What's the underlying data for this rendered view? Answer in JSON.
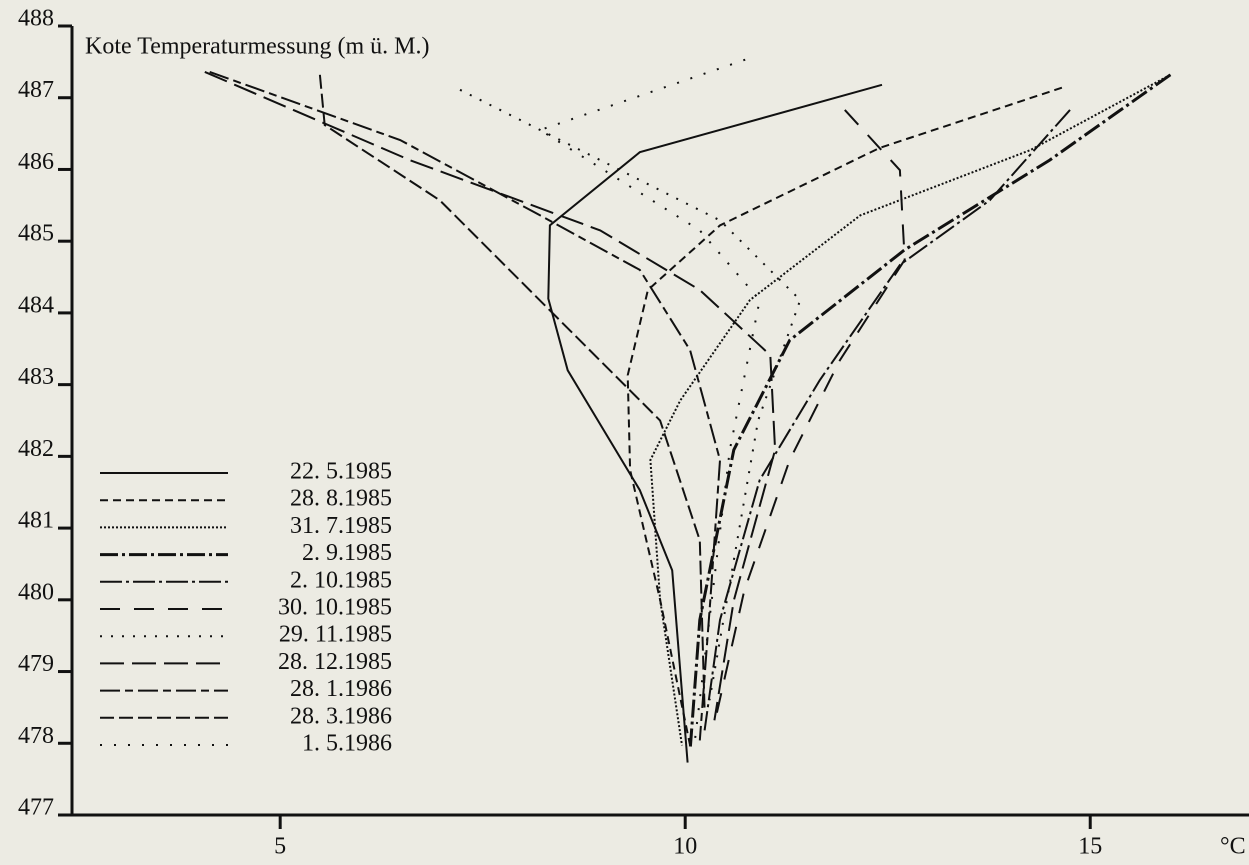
{
  "chart_data": {
    "type": "line",
    "y_label": "Kote Temperaturmessung (m ü. M.)",
    "x_label": "°C",
    "xlim": [
      2.43,
      16.96
    ],
    "xticks": [
      5,
      10,
      15
    ],
    "ylim": [
      477,
      488
    ],
    "yticks": [
      477,
      478,
      479,
      480,
      481,
      482,
      483,
      484,
      485,
      486,
      487,
      488
    ],
    "series": [
      {
        "name": "22. 5.1985",
        "color": "#111",
        "dash": "none",
        "x": [
          12.43,
          9.44,
          8.33,
          8.31,
          8.55,
          9.44,
          9.84,
          10.03
        ],
        "values": [
          487.18,
          486.24,
          485.22,
          484.2,
          483.2,
          481.53,
          480.41,
          477.73
        ]
      },
      {
        "name": "28. 8.1985",
        "color": "#111",
        "dash": "8 5",
        "x": [
          14.65,
          12.4,
          10.43,
          9.54,
          9.29,
          9.32,
          9.69,
          10.06
        ],
        "values": [
          487.14,
          486.3,
          485.22,
          484.32,
          483.13,
          481.81,
          480.0,
          477.97
        ]
      },
      {
        "name": "31. 7.1985",
        "color": "#111",
        "dash": "2 2",
        "x": [
          15.99,
          14.26,
          12.16,
          10.8,
          9.94,
          9.57,
          9.69,
          9.96
        ],
        "values": [
          487.32,
          486.27,
          485.36,
          484.18,
          482.78,
          481.95,
          480.0,
          477.97
        ]
      },
      {
        "name": "2. 9.1985",
        "color": "#111",
        "dash": "18 4 3 4",
        "width": 3,
        "x": [
          15.99,
          14.5,
          12.71,
          11.29,
          10.6,
          10.18,
          10.06
        ],
        "values": [
          487.32,
          486.13,
          484.88,
          483.62,
          482.09,
          479.72,
          477.9
        ]
      },
      {
        "name": "2. 10.1985",
        "color": "#111",
        "dash": "22 4 3 4",
        "x": [
          14.75,
          13.76,
          12.65,
          11.66,
          10.92,
          10.43,
          10.24
        ],
        "values": [
          486.83,
          485.57,
          484.67,
          483.06,
          481.67,
          479.72,
          478.18
        ]
      },
      {
        "name": "30. 10.1985",
        "color": "#111",
        "dash": "20 14",
        "x": [
          11.97,
          12.65,
          12.71,
          11.91,
          11.29,
          10.73,
          10.37
        ],
        "values": [
          486.83,
          485.99,
          484.74,
          483.34,
          481.95,
          480.13,
          478.32
        ]
      },
      {
        "name": "29. 11.1985",
        "color": "#111",
        "dash": "2 9",
        "x": [
          7.22,
          8.95,
          10.43,
          11.42,
          10.9,
          10.3
        ],
        "values": [
          487.11,
          486.13,
          485.29,
          484.18,
          482.5,
          478.6
        ]
      },
      {
        "name": "28. 12.1985",
        "color": "#111",
        "dash": "24 8",
        "x": [
          4.07,
          6.6,
          8.95,
          10.18,
          11.05,
          11.11,
          10.6,
          10.36
        ],
        "values": [
          487.36,
          486.13,
          485.15,
          484.32,
          483.41,
          482.09,
          479.99,
          478.32
        ]
      },
      {
        "name": "28. 1.1986",
        "color": "#111",
        "dash": "20 5 8 5",
        "x": [
          4.13,
          6.48,
          8.21,
          9.44,
          10.06,
          10.43,
          10.31,
          10.18
        ],
        "values": [
          487.36,
          486.41,
          485.36,
          484.6,
          483.48,
          481.95,
          479.99,
          478.04
        ]
      },
      {
        "name": "28. 3.1986",
        "color": "#111",
        "dash": "14 5",
        "x": [
          5.49,
          5.55,
          6.97,
          8.45,
          9.69,
          10.18,
          10.24
        ],
        "values": [
          487.32,
          486.62,
          485.57,
          483.9,
          482.5,
          480.83,
          478.46
        ]
      },
      {
        "name": "1. 5.1986",
        "color": "#111",
        "dash": "2 12",
        "x": [
          10.74,
          8.21,
          10.18,
          10.92,
          10.55,
          10.12
        ],
        "values": [
          487.53,
          486.55,
          485.15,
          484.18,
          482.09,
          478.04
        ]
      }
    ]
  }
}
